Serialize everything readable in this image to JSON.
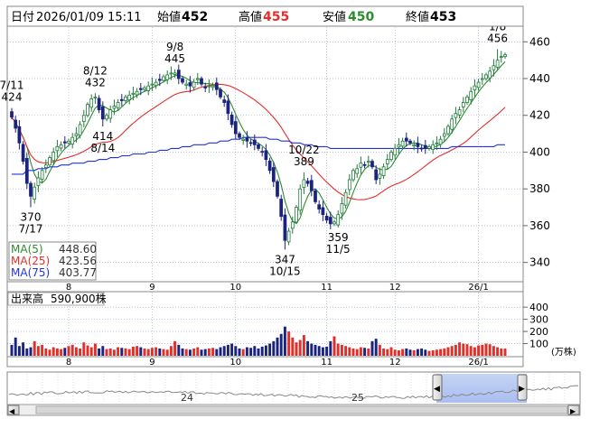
{
  "header": {
    "date_label": "日付",
    "datetime": "2026/01/09 15:11",
    "open_label": "始値",
    "open_value": "452",
    "high_label": "高値",
    "high_value": "455",
    "low_label": "安値",
    "low_value": "450",
    "close_label": "終値",
    "close_value": "453"
  },
  "legend": [
    {
      "label": "MA(5)",
      "value": "448.60",
      "color": "#2e8b2e"
    },
    {
      "label": "MA(25)",
      "value": "423.56",
      "color": "#e0302a"
    },
    {
      "label": "MA(75)",
      "value": "403.77",
      "color": "#2233dd"
    }
  ],
  "volume": {
    "title": "出来高",
    "value": "590,900株",
    "unit": "(万株)"
  },
  "colors": {
    "up": "#ffffff",
    "up_edge": "#1f7a3a",
    "down": "#1a237e",
    "vol_up": "#e0302a",
    "vol_down": "#1a237e",
    "ma5": "#2e8b2e",
    "ma25": "#e0302a",
    "ma75": "#2233dd",
    "grid": "#8aa0c8",
    "high_text": "#e0302a",
    "low_text": "#2e8b2e"
  },
  "navigator": {
    "labels": [
      "24",
      "25"
    ],
    "left_arrow": "◀",
    "right_arrow": "▶",
    "scroll_left": "◀",
    "scroll_right": "▶"
  },
  "chart_data": {
    "type": "candlestick",
    "price_axis": {
      "min": 330,
      "max": 468,
      "ticks": [
        340,
        360,
        380,
        400,
        420,
        440,
        460
      ]
    },
    "volume_axis": {
      "min": 0,
      "max": 520,
      "ticks": [
        100,
        200,
        300,
        400
      ],
      "unit": "(万株)"
    },
    "month_labels": [
      {
        "label": "8",
        "index": 15
      },
      {
        "label": "9",
        "index": 37
      },
      {
        "label": "10",
        "index": 59
      },
      {
        "label": "11",
        "index": 83
      },
      {
        "label": "12",
        "index": 101
      },
      {
        "label": "26/1",
        "index": 123
      }
    ],
    "annotations": [
      {
        "index": 0,
        "value": 424,
        "date": "7/11",
        "type": "high",
        "text": "7/11\n424"
      },
      {
        "index": 5,
        "value": 370,
        "date": "7/17",
        "type": "low",
        "text": "370\n7/17"
      },
      {
        "index": 22,
        "value": 432,
        "date": "8/12",
        "type": "high",
        "text": "8/12\n432"
      },
      {
        "index": 24,
        "value": 414,
        "date": "8/14",
        "type": "low",
        "text": "414\n8/14"
      },
      {
        "index": 43,
        "value": 445,
        "date": "9/8",
        "type": "high",
        "text": "9/8\n445"
      },
      {
        "index": 72,
        "value": 347,
        "date": "10/15",
        "type": "low",
        "text": "347\n10/15"
      },
      {
        "index": 77,
        "value": 389,
        "date": "10/22",
        "type": "high",
        "text": "10/22\n389"
      },
      {
        "index": 86,
        "value": 359,
        "date": "11/5",
        "type": "low",
        "text": "359\n11/5"
      },
      {
        "index": 128,
        "value": 456,
        "date": "1/8",
        "type": "high",
        "text": "1/8\n456"
      }
    ],
    "closes": [
      419,
      413,
      405,
      395,
      383,
      376,
      381,
      386,
      390,
      393,
      397,
      400,
      403,
      404,
      405,
      406,
      408,
      410,
      415,
      420,
      426,
      429,
      430,
      423,
      418,
      420,
      423,
      425,
      427,
      428,
      430,
      431,
      432,
      433,
      434,
      435,
      436,
      437,
      438,
      439,
      441,
      442,
      443,
      443,
      440,
      438,
      437,
      436,
      438,
      440,
      437,
      435,
      436,
      436,
      434,
      430,
      427,
      421,
      415,
      410,
      408,
      407,
      406,
      405,
      404,
      402,
      400,
      396,
      390,
      384,
      376,
      365,
      352,
      357,
      362,
      370,
      380,
      385,
      383,
      379,
      373,
      369,
      366,
      363,
      361,
      362,
      366,
      372,
      378,
      385,
      390,
      391,
      394,
      393,
      395,
      392,
      385,
      388,
      392,
      396,
      400,
      402,
      404,
      406,
      406,
      405,
      404,
      403,
      402,
      402,
      403,
      404,
      405,
      407,
      410,
      414,
      418,
      421,
      423,
      427,
      430,
      433,
      436,
      438,
      440,
      442,
      444,
      447,
      450,
      452,
      453
    ],
    "volumes": [
      90,
      150,
      80,
      110,
      60,
      70,
      120,
      80,
      90,
      60,
      50,
      70,
      60,
      55,
      65,
      80,
      90,
      70,
      60,
      110,
      85,
      70,
      100,
      60,
      80,
      55,
      60,
      50,
      70,
      65,
      60,
      55,
      75,
      80,
      70,
      60,
      55,
      65,
      70,
      60,
      55,
      50,
      80,
      120,
      90,
      60,
      55,
      50,
      60,
      70,
      50,
      55,
      60,
      65,
      55,
      70,
      80,
      90,
      100,
      80,
      60,
      55,
      70,
      65,
      80,
      60,
      75,
      85,
      100,
      120,
      150,
      180,
      240,
      200,
      150,
      110,
      130,
      170,
      120,
      100,
      90,
      80,
      70,
      75,
      120,
      160,
      100,
      90,
      80,
      70,
      60,
      55,
      70,
      65,
      60,
      120,
      140,
      90,
      60,
      55,
      70,
      50,
      45,
      55,
      60,
      50,
      45,
      55,
      60,
      50,
      40,
      45,
      50,
      55,
      60,
      70,
      80,
      90,
      110,
      100,
      95,
      80,
      70,
      85,
      90,
      100,
      95,
      80,
      70,
      60,
      59
    ]
  }
}
